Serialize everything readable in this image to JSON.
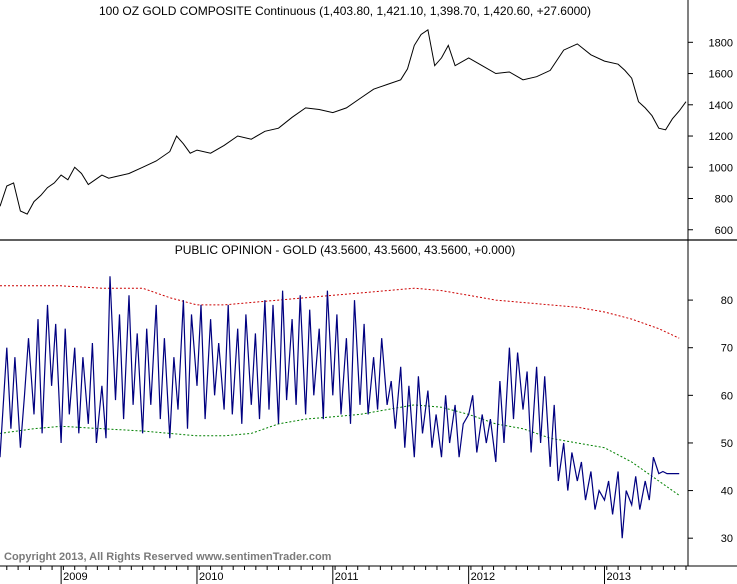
{
  "chart_data": [
    {
      "type": "line",
      "title": "100 OZ GOLD COMPOSITE Continuous (1,403.80, 1,421.10, 1,398.70, 1,420.60, +27.6000)",
      "ylim": [
        560,
        1930
      ],
      "xlim": [
        2008.55,
        2013.6
      ],
      "yticks": [
        600,
        800,
        1000,
        1200,
        1400,
        1600,
        1800
      ],
      "color": "#000000",
      "x": [
        2008.55,
        2008.6,
        2008.65,
        2008.7,
        2008.75,
        2008.8,
        2008.85,
        2008.9,
        2008.95,
        2009.0,
        2009.05,
        2009.1,
        2009.15,
        2009.2,
        2009.25,
        2009.3,
        2009.35,
        2009.4,
        2009.5,
        2009.6,
        2009.7,
        2009.8,
        2009.85,
        2009.9,
        2009.95,
        2010.0,
        2010.1,
        2010.2,
        2010.3,
        2010.4,
        2010.5,
        2010.6,
        2010.7,
        2010.8,
        2010.9,
        2011.0,
        2011.1,
        2011.2,
        2011.3,
        2011.4,
        2011.5,
        2011.55,
        2011.6,
        2011.65,
        2011.7,
        2011.75,
        2011.8,
        2011.85,
        2011.9,
        2012.0,
        2012.1,
        2012.2,
        2012.3,
        2012.4,
        2012.5,
        2012.6,
        2012.7,
        2012.8,
        2012.9,
        2013.0,
        2013.1,
        2013.15,
        2013.2,
        2013.25,
        2013.3,
        2013.35,
        2013.4,
        2013.45,
        2013.5,
        2013.55,
        2013.6
      ],
      "y": [
        750,
        880,
        900,
        720,
        700,
        780,
        820,
        870,
        900,
        950,
        920,
        1000,
        960,
        890,
        920,
        950,
        930,
        940,
        960,
        1000,
        1040,
        1100,
        1200,
        1150,
        1090,
        1110,
        1090,
        1140,
        1200,
        1180,
        1230,
        1250,
        1320,
        1380,
        1370,
        1350,
        1380,
        1440,
        1500,
        1530,
        1560,
        1630,
        1780,
        1850,
        1880,
        1650,
        1700,
        1780,
        1650,
        1700,
        1650,
        1600,
        1610,
        1560,
        1580,
        1620,
        1750,
        1790,
        1720,
        1680,
        1660,
        1620,
        1570,
        1420,
        1380,
        1330,
        1250,
        1240,
        1310,
        1360,
        1420
      ]
    },
    {
      "type": "line",
      "title": "PUBLIC OPINION - GOLD (43.5600, 43.5600, 43.5600, +0.000)",
      "ylim": [
        25,
        88
      ],
      "xlim": [
        2008.55,
        2013.6
      ],
      "yticks": [
        30,
        40,
        50,
        60,
        70,
        80
      ],
      "xticks": [
        "2009",
        "2010",
        "2011",
        "2012",
        "2013"
      ],
      "xtick_pos": [
        2009.0,
        2010.0,
        2011.0,
        2012.0,
        2013.0
      ],
      "series": [
        {
          "color": "#000080",
          "x": [
            2008.55,
            2008.6,
            2008.63,
            2008.66,
            2008.7,
            2008.73,
            2008.76,
            2008.8,
            2008.83,
            2008.86,
            2008.9,
            2008.93,
            2008.96,
            2009.0,
            2009.03,
            2009.06,
            2009.1,
            2009.13,
            2009.16,
            2009.2,
            2009.23,
            2009.26,
            2009.3,
            2009.33,
            2009.36,
            2009.4,
            2009.43,
            2009.46,
            2009.5,
            2009.53,
            2009.56,
            2009.6,
            2009.63,
            2009.66,
            2009.7,
            2009.73,
            2009.76,
            2009.8,
            2009.83,
            2009.86,
            2009.9,
            2009.93,
            2009.96,
            2010.0,
            2010.03,
            2010.06,
            2010.1,
            2010.13,
            2010.16,
            2010.2,
            2010.23,
            2010.26,
            2010.3,
            2010.33,
            2010.36,
            2010.4,
            2010.43,
            2010.46,
            2010.5,
            2010.53,
            2010.56,
            2010.6,
            2010.63,
            2010.66,
            2010.7,
            2010.73,
            2010.76,
            2010.8,
            2010.83,
            2010.86,
            2010.9,
            2010.93,
            2010.96,
            2011.0,
            2011.03,
            2011.06,
            2011.1,
            2011.13,
            2011.16,
            2011.2,
            2011.23,
            2011.26,
            2011.3,
            2011.33,
            2011.36,
            2011.4,
            2011.43,
            2011.46,
            2011.5,
            2011.53,
            2011.56,
            2011.6,
            2011.63,
            2011.66,
            2011.7,
            2011.73,
            2011.76,
            2011.8,
            2011.83,
            2011.86,
            2011.9,
            2011.93,
            2011.96,
            2012.0,
            2012.03,
            2012.06,
            2012.1,
            2012.13,
            2012.16,
            2012.2,
            2012.23,
            2012.26,
            2012.3,
            2012.33,
            2012.36,
            2012.4,
            2012.43,
            2012.46,
            2012.5,
            2012.53,
            2012.56,
            2012.6,
            2012.63,
            2012.66,
            2012.7,
            2012.73,
            2012.76,
            2012.8,
            2012.83,
            2012.86,
            2012.9,
            2012.93,
            2012.96,
            2013.0,
            2013.03,
            2013.06,
            2013.1,
            2013.13,
            2013.16,
            2013.2,
            2013.23,
            2013.26,
            2013.3,
            2013.33,
            2013.36,
            2013.4,
            2013.43,
            2013.46,
            2013.5,
            2013.53,
            2013.55
          ],
          "y": [
            47,
            70,
            53,
            68,
            49,
            60,
            72,
            56,
            76,
            52,
            79,
            62,
            75,
            50,
            74,
            56,
            70,
            52,
            68,
            54,
            71,
            50,
            62,
            51,
            85,
            59,
            77,
            55,
            81,
            58,
            73,
            52,
            74,
            58,
            79,
            55,
            72,
            51,
            68,
            57,
            80,
            53,
            77,
            62,
            79,
            55,
            76,
            60,
            71,
            57,
            79,
            56,
            74,
            54,
            77,
            58,
            73,
            55,
            80,
            57,
            79,
            54,
            82,
            59,
            76,
            58,
            81,
            56,
            78,
            60,
            74,
            55,
            82,
            60,
            77,
            56,
            72,
            54,
            80,
            58,
            75,
            56,
            68,
            57,
            72,
            58,
            63,
            53,
            66,
            49,
            62,
            47,
            64,
            52,
            61,
            49,
            56,
            47,
            60,
            50,
            58,
            47,
            54,
            56,
            60,
            48,
            56,
            50,
            55,
            46,
            63,
            50,
            70,
            55,
            69,
            57,
            65,
            48,
            66,
            50,
            64,
            45,
            58,
            42,
            50,
            40,
            48,
            42,
            46,
            38,
            44,
            36,
            40,
            38,
            42,
            35,
            44,
            30,
            40,
            37,
            43,
            36,
            42,
            38,
            47,
            43.56,
            44,
            43.56,
            43.56,
            43.56,
            43.56
          ]
        },
        {
          "color": "#cc0000",
          "x": [
            2008.55,
            2008.8,
            2009.0,
            2009.3,
            2009.6,
            2009.8,
            2010.0,
            2010.2,
            2010.4,
            2010.6,
            2010.8,
            2011.0,
            2011.2,
            2011.4,
            2011.6,
            2011.8,
            2012.0,
            2012.2,
            2012.4,
            2012.6,
            2012.8,
            2013.0,
            2013.2,
            2013.4,
            2013.55
          ],
          "y": [
            83,
            83,
            83,
            82.5,
            82.5,
            80.5,
            79,
            79,
            79.5,
            80,
            80.5,
            81,
            81.5,
            82,
            82.5,
            82,
            81,
            80,
            79.5,
            79,
            78.5,
            77.5,
            76,
            74,
            72
          ]
        },
        {
          "color": "#008000",
          "x": [
            2008.55,
            2008.8,
            2009.0,
            2009.3,
            2009.6,
            2009.8,
            2010.0,
            2010.2,
            2010.4,
            2010.6,
            2010.8,
            2011.0,
            2011.2,
            2011.4,
            2011.6,
            2011.8,
            2012.0,
            2012.2,
            2012.4,
            2012.6,
            2012.8,
            2013.0,
            2013.2,
            2013.4,
            2013.55
          ],
          "y": [
            52,
            53,
            53.5,
            53,
            52.5,
            52,
            51.5,
            51.5,
            52,
            54,
            55,
            55.5,
            56,
            57,
            58,
            57.5,
            56,
            54,
            53,
            51,
            50,
            49,
            46,
            42,
            39
          ]
        }
      ]
    }
  ],
  "footer": {
    "copyright": "Copyright 2013, All Rights Reserved  www.sentimenTrader.com"
  }
}
